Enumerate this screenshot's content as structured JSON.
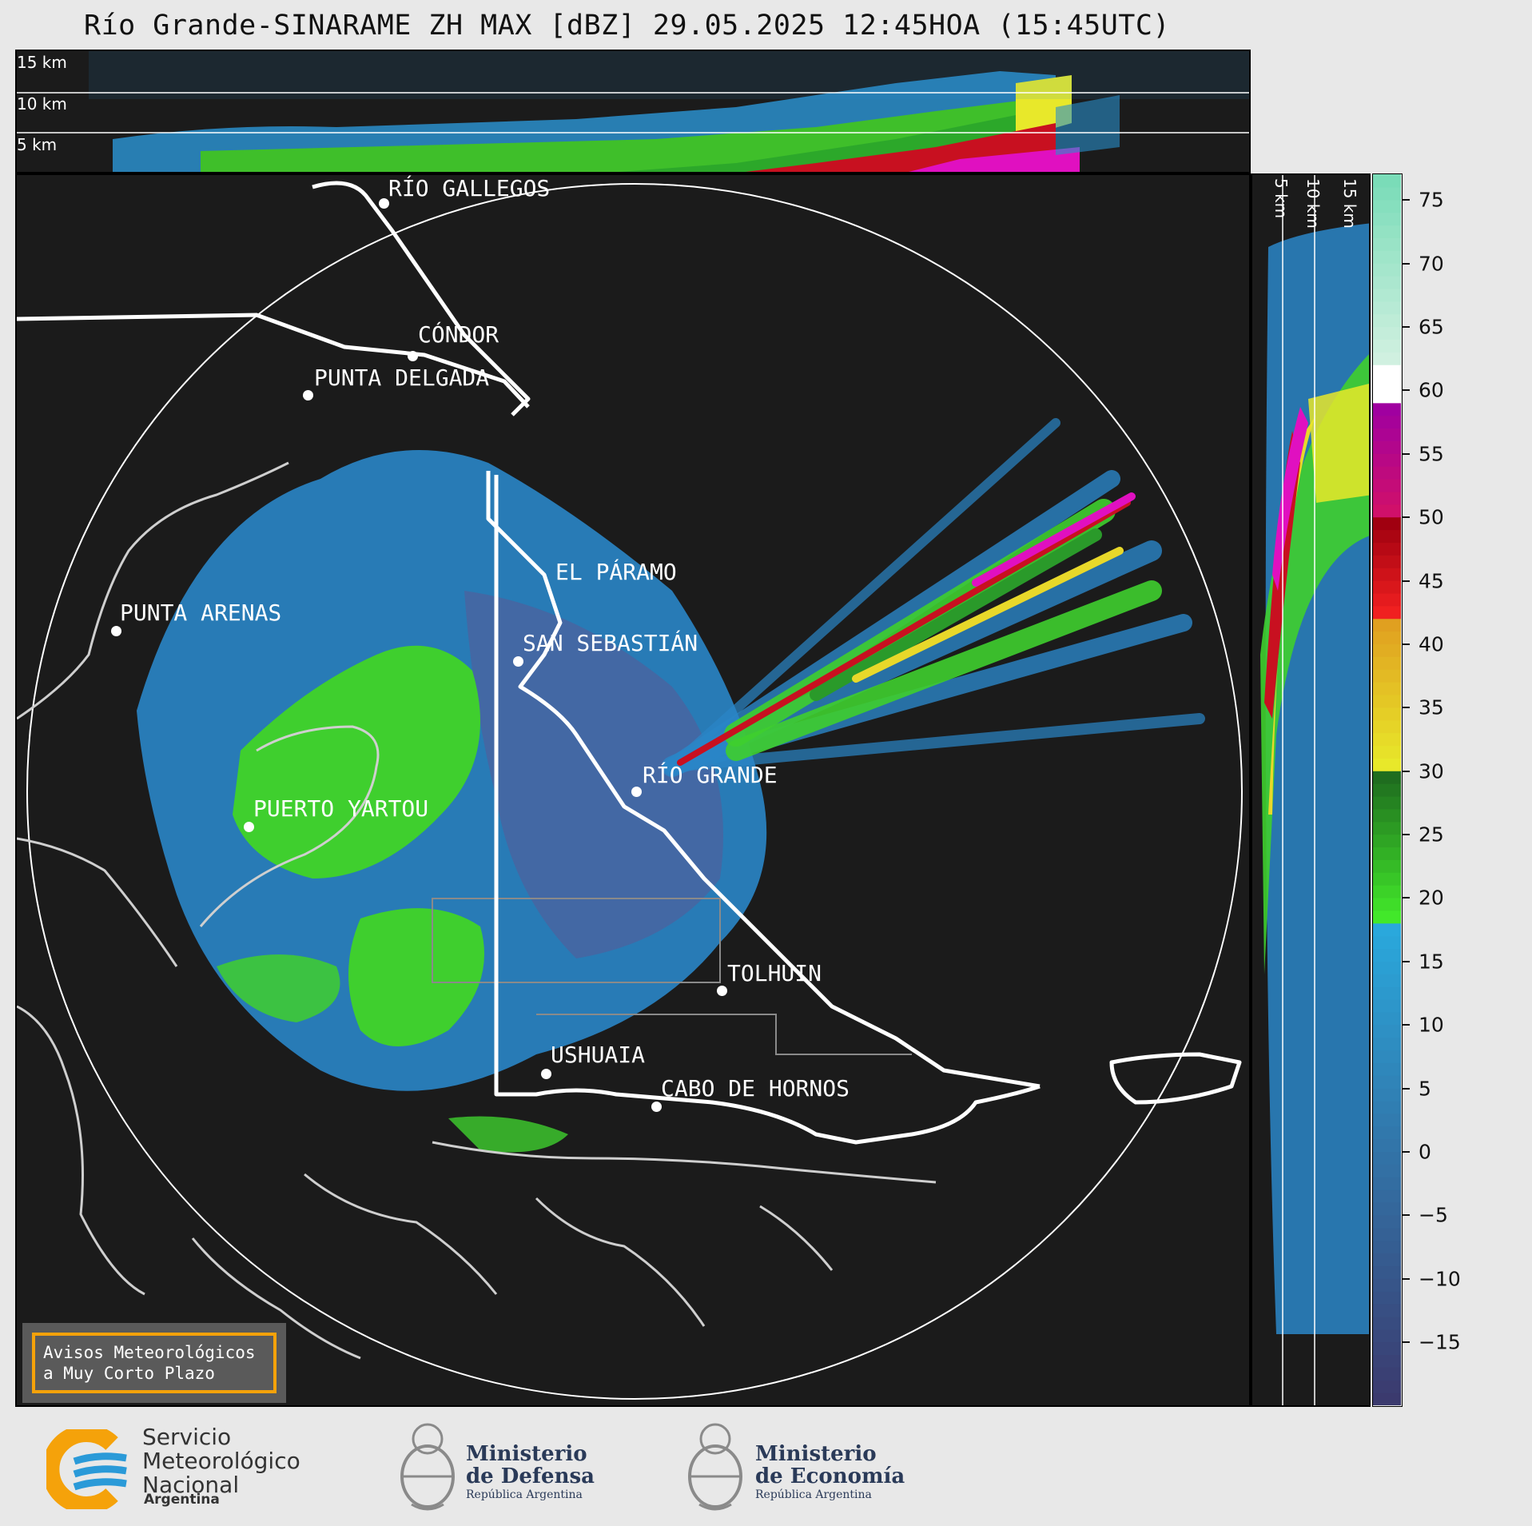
{
  "title": "Río Grande-SINARAME ZH MAX [dBZ] 29.05.2025 12:45HOA (15:45UTC)",
  "top_panel": {
    "altitude_labels": [
      "15 km",
      "10 km",
      "5 km"
    ]
  },
  "right_panel": {
    "altitude_labels": [
      "5 km",
      "10 km",
      "15 km"
    ]
  },
  "cities": [
    {
      "name": "RÍO GALLEGOS"
    },
    {
      "name": "CÓNDOR"
    },
    {
      "name": "PUNTA DELGADA"
    },
    {
      "name": "EL PÁRAMO"
    },
    {
      "name": "PUNTA ARENAS"
    },
    {
      "name": "SAN SEBASTIÁN"
    },
    {
      "name": "RÍO GRANDE"
    },
    {
      "name": "PUERTO YARTOU"
    },
    {
      "name": "TOLHUIN"
    },
    {
      "name": "USHUAIA"
    },
    {
      "name": "CABO DE HORNOS"
    }
  ],
  "warning_box": {
    "line1": "Avisos Meteorológicos",
    "line2": "a Muy Corto Plazo",
    "border_color": "#f5a20a"
  },
  "colorbar": {
    "unit": "dBZ",
    "ticks": [
      "75",
      "70",
      "65",
      "60",
      "55",
      "50",
      "45",
      "40",
      "35",
      "30",
      "25",
      "20",
      "15",
      "10",
      "5",
      "0",
      "−5",
      "−10",
      "−15"
    ],
    "tick_values": [
      75,
      70,
      65,
      60,
      55,
      50,
      45,
      40,
      35,
      30,
      25,
      20,
      15,
      10,
      5,
      0,
      -5,
      -10,
      -15
    ],
    "range": [
      -20,
      77
    ],
    "stops": [
      {
        "from": -20,
        "to": 18,
        "color_low": "#3b3a6e",
        "color_high": "#2aa8dc"
      },
      {
        "from": 18,
        "to": 30,
        "color_low": "#42e82a",
        "color_high": "#1f6d1f"
      },
      {
        "from": 30,
        "to": 42,
        "color_low": "#e8e82a",
        "color_high": "#e0a020"
      },
      {
        "from": 42,
        "to": 50,
        "color_low": "#f02020",
        "color_high": "#a00010"
      },
      {
        "from": 50,
        "to": 59,
        "color_low": "#d0106a",
        "color_high": "#a000a0"
      },
      {
        "from": 59,
        "to": 62,
        "color_low": "#ffffff",
        "color_high": "#ffffff"
      },
      {
        "from": 62,
        "to": 77,
        "color_low": "#d0f0e0",
        "color_high": "#7adcb8"
      }
    ]
  },
  "logos": {
    "smn": {
      "line1": "Servicio",
      "line2": "Meteorológico",
      "line3": "Nacional",
      "country": "Argentina"
    },
    "defensa": {
      "line1": "Ministerio",
      "line2": "de Defensa",
      "sub": "República Argentina"
    },
    "economia": {
      "line1": "Ministerio",
      "line2": "de Economía",
      "sub": "República Argentina"
    }
  }
}
